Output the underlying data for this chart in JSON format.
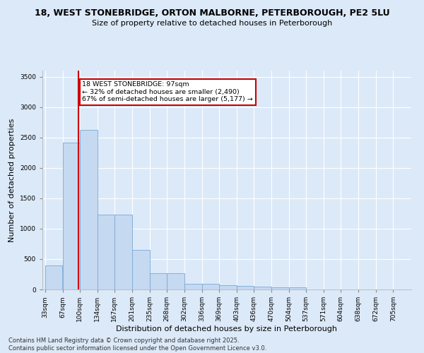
{
  "title_line1": "18, WEST STONEBRIDGE, ORTON MALBORNE, PETERBOROUGH, PE2 5LU",
  "title_line2": "Size of property relative to detached houses in Peterborough",
  "xlabel": "Distribution of detached houses by size in Peterborough",
  "ylabel": "Number of detached properties",
  "footer_line1": "Contains HM Land Registry data © Crown copyright and database right 2025.",
  "footer_line2": "Contains public sector information licensed under the Open Government Licence v3.0.",
  "annotation_title": "18 WEST STONEBRIDGE: 97sqm",
  "annotation_line1": "← 32% of detached houses are smaller (2,490)",
  "annotation_line2": "67% of semi-detached houses are larger (5,177) →",
  "marker_value": 97,
  "bar_edges": [
    33,
    67,
    100,
    134,
    167,
    201,
    235,
    268,
    302,
    336,
    369,
    403,
    436,
    470,
    504,
    537,
    571,
    604,
    638,
    672,
    705
  ],
  "bar_heights": [
    390,
    2420,
    2620,
    1230,
    1230,
    650,
    270,
    270,
    90,
    90,
    65,
    55,
    50,
    40,
    35,
    5,
    5,
    0,
    0,
    0,
    0
  ],
  "bar_color": "#c5d9f1",
  "bar_edge_color": "#7ca8d4",
  "marker_color": "#cc0000",
  "annotation_box_edge_color": "#cc0000",
  "background_color": "#dce9f8",
  "ylim": [
    0,
    3600
  ],
  "yticks": [
    0,
    500,
    1000,
    1500,
    2000,
    2500,
    3000,
    3500
  ],
  "grid_color": "#ffffff",
  "title_fontsize": 9,
  "subtitle_fontsize": 8,
  "axis_label_fontsize": 8,
  "tick_label_fontsize": 6.5,
  "footer_fontsize": 6
}
